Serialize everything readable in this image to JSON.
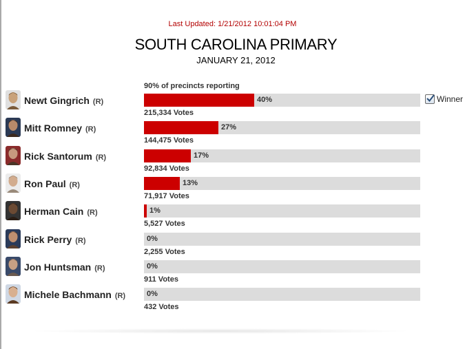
{
  "header": {
    "last_updated": "Last Updated: 1/21/2012 10:01:04 PM",
    "title": "SOUTH CAROLINA PRIMARY",
    "date": "JANUARY 21, 2012",
    "precincts": "90% of precincts reporting"
  },
  "winner_label": "Winner",
  "colors": {
    "bar": "#cc0000",
    "track": "#dcdcdc",
    "updated_text": "#b30000"
  },
  "candidates": [
    {
      "name": "Newt Gingrich",
      "party": "(R)",
      "percent_label": "40%",
      "percent": 40,
      "votes": "215,334 Votes",
      "photo_icon": "candidate-photo",
      "winner": true
    },
    {
      "name": "Mitt Romney",
      "party": "(R)",
      "percent_label": "27%",
      "percent": 27,
      "votes": "144,475 Votes",
      "photo_icon": "candidate-photo",
      "winner": false
    },
    {
      "name": "Rick Santorum",
      "party": "(R)",
      "percent_label": "17%",
      "percent": 17,
      "votes": "92,834 Votes",
      "photo_icon": "candidate-photo",
      "winner": false
    },
    {
      "name": "Ron Paul",
      "party": "(R)",
      "percent_label": "13%",
      "percent": 13,
      "votes": "71,917 Votes",
      "photo_icon": "candidate-photo",
      "winner": false
    },
    {
      "name": "Herman Cain",
      "party": "(R)",
      "percent_label": "1%",
      "percent": 1,
      "votes": "5,527 Votes",
      "photo_icon": "candidate-photo",
      "winner": false
    },
    {
      "name": "Rick Perry",
      "party": "(R)",
      "percent_label": "0%",
      "percent": 0,
      "votes": "2,255 Votes",
      "photo_icon": "candidate-photo",
      "winner": false
    },
    {
      "name": "Jon Huntsman",
      "party": "(R)",
      "percent_label": "0%",
      "percent": 0,
      "votes": "911 Votes",
      "photo_icon": "candidate-photo",
      "winner": false
    },
    {
      "name": "Michele Bachmann",
      "party": "(R)",
      "percent_label": "0%",
      "percent": 0,
      "votes": "432 Votes",
      "photo_icon": "candidate-photo",
      "winner": false
    }
  ]
}
